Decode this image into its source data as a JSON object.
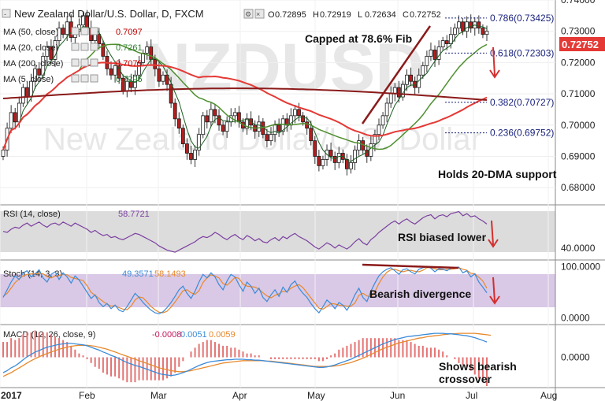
{
  "header": {
    "title": "New Zealand Dollar/U.S. Dollar, D, FXCM",
    "ohlc": [
      {
        "label": "O",
        "value": "0.72895"
      },
      {
        "label": "H",
        "value": "0.72919"
      },
      {
        "label": "L",
        "value": "0.72634"
      },
      {
        "label": "C",
        "value": "0.72752"
      }
    ]
  },
  "legend": [
    {
      "label": "MA (50, close)",
      "value": "0.7097",
      "color": "#c00000"
    },
    {
      "label": "MA (20, close)",
      "value": "0.7261",
      "color": "#2e7d32"
    },
    {
      "label": "MA (200, close)",
      "value": "0.7079",
      "color": "#c00000"
    },
    {
      "label": "MA (5, close)",
      "value": "0.7295",
      "color": "#2e7d32"
    }
  ],
  "watermark": {
    "line1": "NZDUSD",
    "line2": "New Zealand Dollar/U.S. Dollar"
  },
  "last_price": "0.72752",
  "annotations": {
    "capped": "Capped at 78.6% Fib",
    "holds": "Holds 20-DMA support",
    "rsi": "RSI biased lower",
    "stoch": "Bearish divergence",
    "macd_line1": "Shows bearish",
    "macd_line2": "crossover"
  },
  "colors": {
    "up": "#2e7d32",
    "down": "#b71c1c",
    "ma5": "#1b5e20",
    "ma20": "#4e8f2e",
    "ma50": "#e53935",
    "ma200": "#8b1a1a",
    "fib": "#1a237e",
    "rsi": "#7b3fa0",
    "stoch_k": "#3b8bd9",
    "stoch_d": "#e8892c",
    "macd": "#3b8bd9",
    "signal": "#e8892c",
    "arrow": "#d32f2f",
    "panel": "#dcdcdc",
    "stoch_panel": "#d9c8e6",
    "price_tag": "#e53935"
  },
  "chart_data": [
    {
      "type": "candlestick",
      "title": "New Zealand Dollar/U.S. Dollar, D, FXCM",
      "ylim": [
        0.675,
        0.74
      ],
      "yticks": [
        "0.74000",
        "0.73000",
        "0.72000",
        "0.71000",
        "0.70000",
        "0.69000",
        "0.68000"
      ],
      "xticks": [
        "2017",
        "Feb",
        "Mar",
        "Apr",
        "May",
        "Jun",
        "Jul",
        "Aug"
      ],
      "close": [
        0.692,
        0.699,
        0.704,
        0.701,
        0.707,
        0.712,
        0.709,
        0.714,
        0.718,
        0.716,
        0.722,
        0.725,
        0.721,
        0.727,
        0.731,
        0.729,
        0.733,
        0.728,
        0.73,
        0.732,
        0.735,
        0.731,
        0.727,
        0.729,
        0.726,
        0.722,
        0.718,
        0.716,
        0.719,
        0.715,
        0.711,
        0.714,
        0.712,
        0.716,
        0.72,
        0.723,
        0.725,
        0.721,
        0.718,
        0.714,
        0.716,
        0.713,
        0.707,
        0.702,
        0.699,
        0.694,
        0.691,
        0.689,
        0.692,
        0.697,
        0.703,
        0.701,
        0.705,
        0.703,
        0.7,
        0.698,
        0.701,
        0.703,
        0.704,
        0.701,
        0.699,
        0.702,
        0.7,
        0.698,
        0.701,
        0.697,
        0.695,
        0.697,
        0.7,
        0.698,
        0.702,
        0.7,
        0.703,
        0.705,
        0.703,
        0.701,
        0.699,
        0.695,
        0.69,
        0.687,
        0.689,
        0.692,
        0.69,
        0.688,
        0.691,
        0.689,
        0.686,
        0.688,
        0.692,
        0.695,
        0.692,
        0.69,
        0.694,
        0.697,
        0.7,
        0.703,
        0.707,
        0.71,
        0.712,
        0.709,
        0.713,
        0.716,
        0.714,
        0.712,
        0.716,
        0.719,
        0.722,
        0.724,
        0.721,
        0.725,
        0.727,
        0.726,
        0.729,
        0.731,
        0.733,
        0.73,
        0.733,
        0.731,
        0.733,
        0.731,
        0.729,
        0.73
      ],
      "fib_levels": [
        {
          "label": "0.786(0.73425)",
          "value": 0.73425
        },
        {
          "label": "0.618(0.72303)",
          "value": 0.72303
        },
        {
          "label": "0.382(0.70727)",
          "value": 0.70727
        },
        {
          "label": "0.236(0.69752)",
          "value": 0.69752
        }
      ]
    },
    {
      "type": "line",
      "title": "RSI (14, close)",
      "value_label": "58.7721",
      "ylim": [
        30,
        80
      ],
      "yticks": [
        "40.0000"
      ],
      "values": [
        56,
        55,
        58,
        60,
        59,
        62,
        64,
        61,
        63,
        65,
        62,
        60,
        63,
        64,
        62,
        65,
        63,
        61,
        64,
        62,
        60,
        58,
        55,
        57,
        54,
        52,
        53,
        50,
        51,
        49,
        48,
        50,
        52,
        54,
        53,
        51,
        49,
        47,
        45,
        42,
        40,
        38,
        37,
        36,
        38,
        40,
        42,
        44,
        46,
        49,
        51,
        50,
        52,
        55,
        53,
        50,
        48,
        51,
        53,
        50,
        48,
        52,
        50,
        47,
        49,
        46,
        45,
        48,
        50,
        47,
        51,
        49,
        52,
        54,
        51,
        49,
        47,
        44,
        41,
        39,
        42,
        45,
        43,
        40,
        43,
        41,
        39,
        42,
        46,
        49,
        45,
        43,
        48,
        51,
        55,
        58,
        61,
        64,
        66,
        63,
        66,
        68,
        65,
        63,
        66,
        69,
        71,
        72,
        68,
        71,
        72,
        70,
        73,
        74,
        75,
        71,
        73,
        70,
        71,
        68,
        66,
        63
      ]
    },
    {
      "type": "line",
      "title": "Stoch (14, 3, 3)",
      "k_label": "49.3571",
      "d_label": "58.1493",
      "ylim": [
        -10,
        110
      ],
      "yticks": [
        "100.0000",
        "0.0000"
      ],
      "series": [
        {
          "name": "%K",
          "values": [
            40,
            55,
            70,
            82,
            75,
            88,
            92,
            80,
            86,
            94,
            78,
            70,
            85,
            90,
            75,
            88,
            80,
            68,
            82,
            74,
            62,
            50,
            38,
            45,
            30,
            22,
            28,
            18,
            25,
            15,
            12,
            22,
            35,
            48,
            40,
            30,
            22,
            15,
            10,
            8,
            12,
            20,
            30,
            42,
            55,
            62,
            48,
            38,
            52,
            70,
            85,
            78,
            88,
            80,
            65,
            55,
            72,
            85,
            80,
            65,
            52,
            70,
            62,
            48,
            58,
            40,
            32,
            45,
            55,
            42,
            60,
            50,
            65,
            72,
            58,
            48,
            40,
            28,
            18,
            10,
            22,
            35,
            28,
            18,
            30,
            25,
            15,
            28,
            45,
            58,
            40,
            32,
            52,
            68,
            82,
            90,
            95,
            98,
            92,
            85,
            94,
            96,
            90,
            86,
            95,
            98,
            100,
            97,
            90,
            96,
            95,
            92,
            97,
            98,
            99,
            88,
            92,
            80,
            86,
            70,
            60,
            49
          ]
        },
        {
          "name": "%D",
          "values": [
            42,
            48,
            58,
            69,
            76,
            82,
            85,
            86,
            86,
            87,
            86,
            81,
            78,
            82,
            83,
            85,
            84,
            79,
            77,
            75,
            73,
            63,
            50,
            44,
            38,
            32,
            27,
            23,
            24,
            20,
            17,
            16,
            23,
            35,
            41,
            39,
            31,
            22,
            16,
            11,
            10,
            13,
            21,
            31,
            42,
            53,
            55,
            49,
            46,
            53,
            69,
            78,
            84,
            82,
            78,
            67,
            64,
            71,
            79,
            77,
            66,
            62,
            61,
            60,
            56,
            49,
            43,
            39,
            44,
            47,
            52,
            51,
            58,
            62,
            65,
            59,
            49,
            39,
            29,
            19,
            17,
            22,
            28,
            27,
            25,
            24,
            23,
            23,
            29,
            44,
            48,
            43,
            41,
            51,
            67,
            80,
            89,
            94,
            95,
            92,
            90,
            92,
            93,
            91,
            90,
            93,
            98,
            98,
            96,
            94,
            94,
            94,
            95,
            96,
            98,
            95,
            93,
            87,
            86,
            79,
            72,
            58
          ]
        }
      ]
    },
    {
      "type": "line",
      "title": "MACD (12, 26, close, 9)",
      "value_labels": [
        "-0.0008",
        "0.0051",
        "0.0059"
      ],
      "ylim": [
        -0.006,
        0.0065
      ],
      "yticks": [
        "0.0000"
      ],
      "series": [
        {
          "name": "MACD",
          "values": [
            -0.0032,
            -0.0028,
            -0.0022,
            -0.0018,
            -0.0012,
            -0.0005,
            0.0001,
            0.0006,
            0.0011,
            0.0014,
            0.0018,
            0.0021,
            0.0023,
            0.0025,
            0.0027,
            0.0028,
            0.0029,
            0.0029,
            0.0028,
            0.0027,
            0.0026,
            0.0024,
            0.0021,
            0.0018,
            0.0015,
            0.0011,
            0.0008,
            0.0004,
            0.0001,
            -0.0003,
            -0.0007,
            -0.0011,
            -0.0014,
            -0.0017,
            -0.0019,
            -0.0022,
            -0.0025,
            -0.0028,
            -0.0031,
            -0.0034,
            -0.0036,
            -0.0037,
            -0.0038,
            -0.0037,
            -0.0035,
            -0.0032,
            -0.0029,
            -0.0025,
            -0.0021,
            -0.0017,
            -0.0014,
            -0.0011,
            -0.0009,
            -0.0008,
            -0.0007,
            -0.0006,
            -0.0005,
            -0.0005,
            -0.0004,
            -0.0004,
            -0.0004,
            -0.0005,
            -0.0005,
            -0.0006,
            -0.0006,
            -0.0007,
            -0.0008,
            -0.0009,
            -0.001,
            -0.0011,
            -0.0012,
            -0.0013,
            -0.0014,
            -0.0015,
            -0.0016,
            -0.0017,
            -0.0018,
            -0.0019,
            -0.002,
            -0.0021,
            -0.0021,
            -0.002,
            -0.0018,
            -0.0016,
            -0.0013,
            -0.001,
            -0.0007,
            -0.0004,
            0.0,
            0.0004,
            0.0008,
            0.0012,
            0.0016,
            0.002,
            0.0024,
            0.0028,
            0.0031,
            0.0034,
            0.0037,
            0.0039,
            0.0041,
            0.0043,
            0.0044,
            0.0045,
            0.0046,
            0.0047,
            0.0048,
            0.0049,
            0.005,
            0.005,
            0.005,
            0.0049,
            0.0049,
            0.0048,
            0.0047,
            0.0046,
            0.0045,
            0.0043,
            0.0041,
            0.0038,
            0.0035,
            0.0032
          ]
        },
        {
          "name": "Signal",
          "values": [
            -0.004,
            -0.0036,
            -0.0032,
            -0.0027,
            -0.0022,
            -0.0017,
            -0.0012,
            -0.0007,
            -0.0003,
            0.0001,
            0.0005,
            0.0008,
            0.0011,
            0.0014,
            0.0017,
            0.0019,
            0.0021,
            0.0023,
            0.0024,
            0.0025,
            0.0025,
            0.0025,
            0.0024,
            0.0023,
            0.0021,
            0.0019,
            0.0017,
            0.0014,
            0.0011,
            0.0008,
            0.0005,
            0.0002,
            -0.0001,
            -0.0004,
            -0.0007,
            -0.001,
            -0.0013,
            -0.0016,
            -0.0019,
            -0.0022,
            -0.0024,
            -0.0026,
            -0.0028,
            -0.0029,
            -0.003,
            -0.003,
            -0.0029,
            -0.0028,
            -0.0026,
            -0.0024,
            -0.0022,
            -0.002,
            -0.0018,
            -0.0016,
            -0.0014,
            -0.0012,
            -0.0011,
            -0.001,
            -0.0009,
            -0.0008,
            -0.0007,
            -0.0007,
            -0.0007,
            -0.0007,
            -0.0007,
            -0.0007,
            -0.0008,
            -0.0008,
            -0.0009,
            -0.001,
            -0.0011,
            -0.0012,
            -0.0013,
            -0.0014,
            -0.0015,
            -0.0016,
            -0.0017,
            -0.0018,
            -0.0019,
            -0.0019,
            -0.0019,
            -0.0019,
            -0.0019,
            -0.0018,
            -0.0017,
            -0.0015,
            -0.0013,
            -0.0011,
            -0.0008,
            -0.0005,
            -0.0002,
            0.0002,
            0.0006,
            0.001,
            0.0014,
            0.0018,
            0.0021,
            0.0024,
            0.0027,
            0.003,
            0.0032,
            0.0034,
            0.0036,
            0.0038,
            0.004,
            0.0041,
            0.0043,
            0.0044,
            0.0045,
            0.0046,
            0.0047,
            0.0048,
            0.0049,
            0.0049,
            0.005,
            0.005,
            0.005,
            0.005,
            0.005,
            0.0049,
            0.0048,
            0.0047,
            0.0046
          ]
        }
      ]
    }
  ]
}
